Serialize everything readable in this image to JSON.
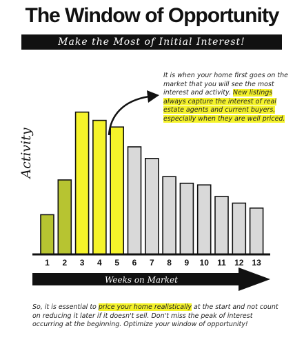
{
  "title": "The Window of Opportunity",
  "subtitle": "Make the Most of Initial Interest!",
  "callout": {
    "text_plain": "It is when your home first goes on the market that you will see the most interest and activity. ",
    "text_highlight": "New listings always capture the interest of real estate agents and current buyers, especially when they are well priced."
  },
  "footer": {
    "text_before": "So, it is essential to ",
    "text_highlight": "price your home realistically",
    "text_after": " at the start and not count on reducing it later if it doesn't sell. Don't miss the peak of interest occurring at the beginning. Optimize your window of opportunity!"
  },
  "colors": {
    "olive": "#b7c431",
    "yellow": "#f5f32a",
    "gray": "#d9d9d9",
    "outline": "#111111"
  },
  "chart_data": {
    "type": "bar",
    "xlabel": "Weeks on Market",
    "ylabel": "Activity",
    "categories": [
      "1",
      "2",
      "3",
      "4",
      "5",
      "6",
      "7",
      "8",
      "9",
      "10",
      "11",
      "12",
      "13"
    ],
    "values": [
      24,
      45,
      86,
      81,
      77,
      65,
      58,
      47,
      43,
      42,
      35,
      31,
      28
    ],
    "bar_colors": [
      "olive",
      "olive",
      "yellow",
      "yellow",
      "yellow",
      "gray",
      "gray",
      "gray",
      "gray",
      "gray",
      "gray",
      "gray",
      "gray"
    ],
    "ylim": [
      0,
      100
    ],
    "grid": false
  }
}
